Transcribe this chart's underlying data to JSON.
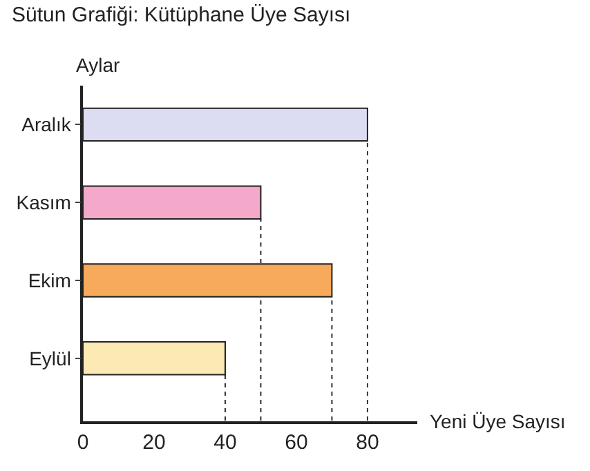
{
  "chart_data": {
    "type": "bar",
    "orientation": "horizontal",
    "title": "Sütun Grafiği: Kütüphane Üye Sayısı",
    "ylabel": "Aylar",
    "xlabel": "Yeni Üye Sayısı",
    "categories": [
      "Aralık",
      "Kasım",
      "Ekim",
      "Eylül"
    ],
    "values": [
      80,
      50,
      70,
      40
    ],
    "colors": [
      "#dcdcf2",
      "#f4a9cb",
      "#f7a95c",
      "#fde9b4"
    ],
    "xlim": [
      0,
      94
    ],
    "xticks": [
      0,
      20,
      40,
      60,
      80
    ],
    "ref_lines": [
      {
        "axis": "x",
        "value": 40,
        "line_style": "dotted",
        "color": "#333333"
      },
      {
        "axis": "x",
        "value": 50,
        "line_style": "dotted",
        "color": "#333333"
      },
      {
        "axis": "x",
        "value": 70,
        "line_style": "dotted",
        "color": "#333333"
      },
      {
        "axis": "x",
        "value": 80,
        "line_style": "dotted",
        "color": "#333333"
      }
    ]
  }
}
